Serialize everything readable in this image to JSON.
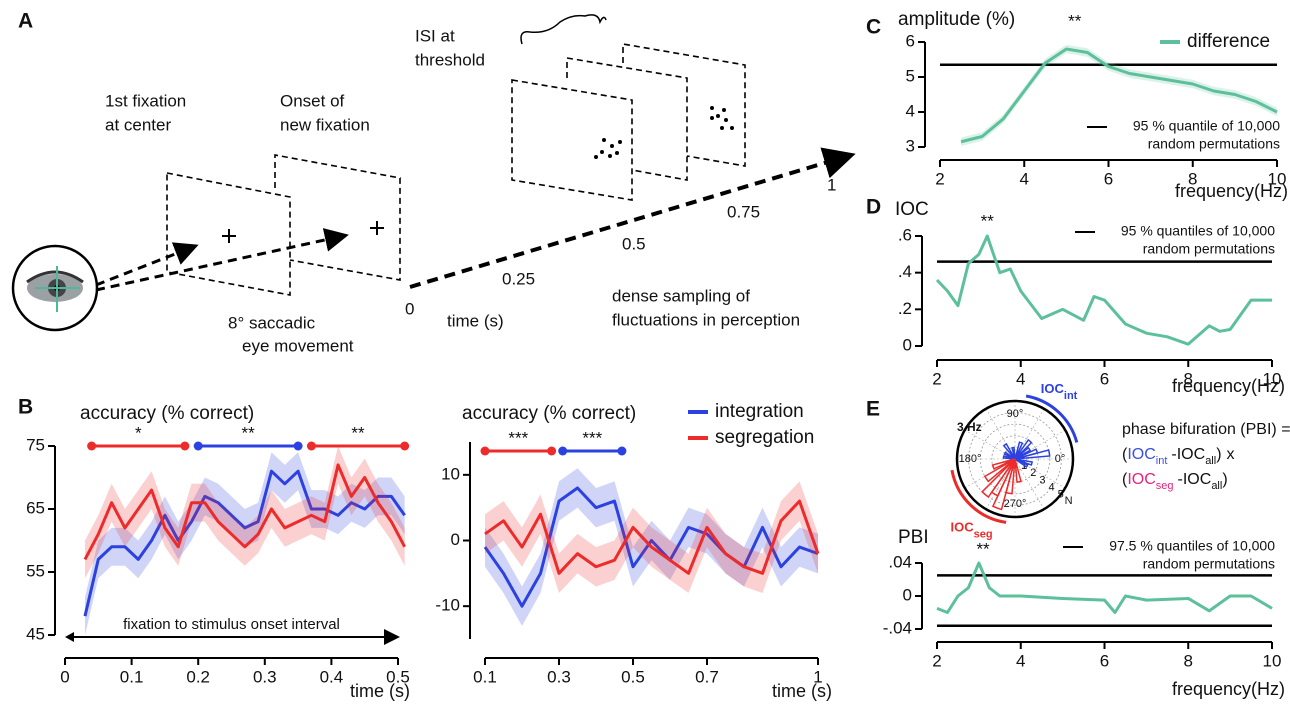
{
  "panel_labels": [
    "A",
    "B",
    "C",
    "D",
    "E"
  ],
  "diagram": {
    "fixation_1": [
      "1st fixation",
      "at center"
    ],
    "fixation_2": [
      "Onset of",
      "new fixation"
    ],
    "saccade": [
      "8° saccadic",
      "eye movement"
    ],
    "isi": [
      "ISI at",
      "threshold"
    ],
    "sampling": [
      "dense sampling of",
      "fluctuations in perception"
    ],
    "time_label": "time (s)",
    "time_ticks": [
      "0",
      "0.25",
      "0.5",
      "0.75",
      "1"
    ]
  },
  "chart_data": [
    {
      "type": "line",
      "title": "accuracy (% correct)",
      "x_label": "time (s)",
      "xlim": [
        0,
        0.5
      ],
      "ylim": [
        45,
        75
      ],
      "xticks": [
        0,
        0.1,
        0.2,
        0.3,
        0.4,
        0.5
      ],
      "yticks": [
        45,
        55,
        65,
        75
      ],
      "x": [
        0.03,
        0.05,
        0.07,
        0.09,
        0.11,
        0.13,
        0.15,
        0.17,
        0.19,
        0.21,
        0.23,
        0.25,
        0.27,
        0.29,
        0.31,
        0.33,
        0.35,
        0.37,
        0.39,
        0.41,
        0.43,
        0.45,
        0.47,
        0.49,
        0.51
      ],
      "series": [
        {
          "name": "integration",
          "color": "#2b41e0",
          "band": 3,
          "values": [
            48,
            57,
            59,
            59,
            57,
            60,
            64,
            60,
            63,
            67,
            66,
            64,
            62,
            63,
            71,
            69,
            71,
            65,
            65,
            64,
            66,
            65,
            67,
            67,
            64
          ]
        },
        {
          "name": "segregation",
          "color": "#ee2b2b",
          "band": 3,
          "values": [
            57,
            61,
            66,
            62,
            65,
            68,
            62,
            59,
            66,
            66,
            63,
            61,
            59,
            61,
            65,
            62,
            63,
            64,
            63,
            72,
            67,
            70,
            66,
            63,
            59
          ]
        }
      ],
      "significance": [
        {
          "x": [
            0.04,
            0.18
          ],
          "color": "#ee2b2b",
          "label": "*"
        },
        {
          "x": [
            0.2,
            0.35
          ],
          "color": "#2b41e0",
          "label": "**"
        },
        {
          "x": [
            0.37,
            0.51
          ],
          "color": "#ee2b2b",
          "label": "**"
        }
      ],
      "interval": {
        "x": [
          0,
          0.5
        ],
        "label": "fixation to stimulus onset interval"
      }
    },
    {
      "type": "line",
      "title": "accuracy (% correct)",
      "x_label": "time (s)",
      "xlim": [
        0.1,
        1
      ],
      "ylim": [
        -15,
        15
      ],
      "xticks": [
        0.1,
        0.3,
        0.5,
        0.7,
        1
      ],
      "yticks": [
        -10,
        0,
        10
      ],
      "legend": "top-right",
      "x": [
        0.1,
        0.15,
        0.2,
        0.25,
        0.3,
        0.35,
        0.4,
        0.45,
        0.5,
        0.55,
        0.6,
        0.65,
        0.7,
        0.75,
        0.8,
        0.85,
        0.9,
        0.95,
        1
      ],
      "series": [
        {
          "name": "integration",
          "color": "#2b41e0",
          "band": 3,
          "values": [
            -1,
            -5,
            -10,
            -5,
            6,
            8,
            5,
            6,
            -4,
            0,
            -3,
            2,
            1,
            -2,
            -4,
            2,
            -4,
            -1,
            -2
          ]
        },
        {
          "name": "segregation",
          "color": "#ee2b2b",
          "band": 3,
          "values": [
            1,
            3,
            -1,
            4,
            -5,
            -2,
            -4,
            -3,
            2,
            -1,
            -3,
            -5,
            2,
            -2,
            -4,
            -5,
            3,
            6,
            -2
          ]
        }
      ],
      "significance": [
        {
          "x": [
            0.1,
            0.28
          ],
          "color": "#ee2b2b",
          "label": "***"
        },
        {
          "x": [
            0.31,
            0.47
          ],
          "color": "#2b41e0",
          "label": "***"
        }
      ]
    },
    {
      "type": "line",
      "title": "amplitude (%)",
      "x_label": "frequency(Hz)",
      "xlim": [
        2,
        10
      ],
      "ylim": [
        3,
        6
      ],
      "xticks": [
        2,
        4,
        6,
        8,
        10
      ],
      "yticks": [
        3,
        4,
        5,
        6
      ],
      "legend": "top-right",
      "x": [
        2.5,
        3,
        3.5,
        4,
        4.5,
        5,
        5.5,
        6,
        6.5,
        7,
        7.5,
        8,
        8.5,
        9,
        9.5,
        10
      ],
      "series": [
        {
          "name": "difference",
          "color": "#5cc09b",
          "band": 0.12,
          "values": [
            3.15,
            3.3,
            3.8,
            4.6,
            5.4,
            5.8,
            5.7,
            5.3,
            5.1,
            5.0,
            4.9,
            4.8,
            4.6,
            4.5,
            4.3,
            4.0
          ]
        }
      ],
      "thresholds": [
        {
          "x": [
            2,
            10
          ],
          "values": [
            5.35,
            5.35
          ]
        }
      ],
      "threshold_label": [
        "95 % quantile of 10,000",
        "random permutations"
      ],
      "annotations": [
        {
          "x": 5.2,
          "text": "**"
        }
      ]
    },
    {
      "type": "line",
      "title": "IOC",
      "x_label": "frequency(Hz)",
      "xlim": [
        2,
        10
      ],
      "ylim": [
        0,
        0.6
      ],
      "xticks": [
        2,
        4,
        6,
        8,
        10
      ],
      "yticks": [
        {
          "value": 0,
          "label": "0"
        },
        {
          "value": 0.2,
          "label": ".2"
        },
        {
          "value": 0.4,
          "label": ".4"
        },
        {
          "value": 0.6,
          "label": ".6"
        }
      ],
      "x": [
        2,
        2.25,
        2.5,
        2.75,
        3,
        3.2,
        3.5,
        3.75,
        4,
        4.5,
        5,
        5.5,
        5.75,
        6,
        6.5,
        7,
        7.5,
        8,
        8.25,
        8.5,
        8.75,
        9,
        9.5,
        10
      ],
      "series": [
        {
          "color": "#5cc09b",
          "values": [
            0.36,
            0.3,
            0.22,
            0.45,
            0.5,
            0.6,
            0.4,
            0.42,
            0.3,
            0.15,
            0.2,
            0.14,
            0.27,
            0.25,
            0.12,
            0.07,
            0.05,
            0.01,
            0.06,
            0.11,
            0.08,
            0.09,
            0.25,
            0.25
          ]
        }
      ],
      "thresholds": [
        {
          "x": [
            2,
            10
          ],
          "values": [
            0.46,
            0.46
          ]
        }
      ],
      "threshold_label": [
        "95 % quantiles of 10,000",
        "random permutations"
      ],
      "annotations": [
        {
          "x": 3.2,
          "text": "**"
        }
      ]
    },
    {
      "type": "polar-bar",
      "title": "3 Hz",
      "rlim": [
        0,
        5
      ],
      "rticks": [
        1,
        2,
        3,
        4,
        5
      ],
      "r_label": "N",
      "angle_ticks": [
        {
          "value": 90,
          "label": "90°"
        },
        {
          "value": 180,
          "label": "180°"
        },
        {
          "value": 0,
          "label": "0°"
        },
        {
          "value": 270,
          "label": "270°"
        }
      ],
      "series": [
        {
          "name": "integration",
          "color": "#2b41e0",
          "angles": [
            10,
            20,
            35,
            50,
            70,
            100,
            125,
            150,
            170,
            200,
            330,
            345
          ],
          "values": [
            3,
            2,
            1.5,
            2,
            1.5,
            1,
            1.5,
            1,
            1,
            0.8,
            1.2,
            1.5
          ]
        },
        {
          "name": "segregation",
          "color": "#ee2b2b",
          "angles": [
            200,
            215,
            230,
            240,
            250,
            260,
            280
          ],
          "values": [
            2,
            3,
            4,
            3.5,
            4.5,
            3,
            2
          ]
        }
      ],
      "arcs": [
        {
          "from": 15,
          "to": 80,
          "color": "#2b41e0",
          "main": "IOC",
          "sub": "int"
        },
        {
          "from": 190,
          "to": 262,
          "color": "#ee2b2b",
          "main": "IOC",
          "sub": "seg"
        }
      ],
      "formula": {
        "title": "phase bifuration (PBI) =",
        "open": "(",
        "close": ")",
        "minus": "-",
        "times": "x",
        "terms": [
          {
            "main": "IOC",
            "sub": "int",
            "color": "#3b4fe0"
          },
          {
            "main": "IOC",
            "sub": "all"
          },
          {
            "main": "IOC",
            "sub": "seg",
            "color": "#e3257f"
          },
          {
            "main": "IOC",
            "sub": "all"
          }
        ]
      }
    },
    {
      "type": "line",
      "title": "PBI",
      "x_label": "frequency(Hz)",
      "xlim": [
        2,
        10
      ],
      "ylim": [
        -0.04,
        0.04
      ],
      "xticks": [
        2,
        4,
        6,
        8,
        10
      ],
      "yticks": [
        {
          "value": -0.04,
          "label": "-.04"
        },
        {
          "value": 0,
          "label": "0"
        },
        {
          "value": 0.04,
          "label": ".04"
        }
      ],
      "x": [
        2,
        2.25,
        2.5,
        2.75,
        3,
        3.25,
        3.5,
        4,
        5,
        6,
        6.25,
        6.5,
        7,
        8,
        8.5,
        9,
        9.5,
        10
      ],
      "series": [
        {
          "color": "#5cc09b",
          "values": [
            -0.015,
            -0.02,
            0,
            0.01,
            0.04,
            0.01,
            0,
            0,
            -0.003,
            -0.005,
            -0.02,
            0,
            -0.005,
            -0.003,
            -0.018,
            0,
            0,
            -0.015
          ]
        }
      ],
      "thresholds": [
        {
          "x": [
            2,
            10
          ],
          "values": [
            0.025,
            0.025
          ]
        },
        {
          "x": [
            2,
            10
          ],
          "values": [
            -0.036,
            -0.036
          ]
        }
      ],
      "threshold_label": [
        "97.5 % quantiles of 10,000",
        "random permutations"
      ],
      "annotations": [
        {
          "x": 3.1,
          "text": "**"
        }
      ]
    }
  ]
}
